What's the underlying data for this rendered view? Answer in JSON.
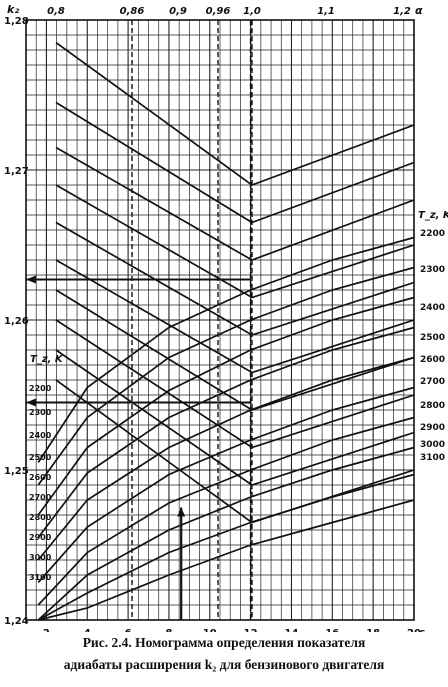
{
  "figure": {
    "caption_line1": "Рис. 2.4. Номограмма определения показателя",
    "caption_line2": "адиабаты расширения k₂ для бензинового двигателя"
  },
  "chart_data": {
    "type": "line",
    "title": "",
    "y_axis": {
      "label": "k₂",
      "range": [
        1.24,
        1.28
      ],
      "ticks": [
        "1,24",
        "1,25",
        "1,26",
        "1,27",
        "1,28"
      ],
      "tick_values": [
        1.24,
        1.25,
        1.26,
        1.27,
        1.28
      ]
    },
    "x_axis_bottom": {
      "label": "ε",
      "range": [
        1,
        20
      ],
      "ticks": [
        "2",
        "4",
        "6",
        "8",
        "10",
        "12",
        "14",
        "16",
        "18",
        "20"
      ],
      "tick_values": [
        2,
        4,
        6,
        8,
        10,
        12,
        14,
        16,
        18,
        20
      ]
    },
    "x_axis_top": {
      "label": "α",
      "ticks": [
        "0,8",
        "0,86",
        "0,9",
        "0,96",
        "1,0",
        "1,1",
        "1,2"
      ],
      "tick_values": [
        0.8,
        0.86,
        0.9,
        0.96,
        1.0,
        1.1,
        1.2
      ]
    },
    "upper_family": {
      "note": "k₂ versus α (top scale) for constant T_z",
      "legend_title": "T_z, K",
      "legend": [
        "2200",
        "2300",
        "2400",
        "2500",
        "2600",
        "2700",
        "2800",
        "2900",
        "3000",
        "3100"
      ],
      "series": [
        {
          "name": "2200",
          "alpha": [
            0.8,
            1.0,
            1.2
          ],
          "k2": [
            1.2785,
            1.269,
            1.273
          ]
        },
        {
          "name": "2300",
          "alpha": [
            0.8,
            1.0,
            1.2
          ],
          "k2": [
            1.2745,
            1.2665,
            1.2705
          ]
        },
        {
          "name": "2400",
          "alpha": [
            0.8,
            1.0,
            1.2
          ],
          "k2": [
            1.2715,
            1.264,
            1.268
          ]
        },
        {
          "name": "2500",
          "alpha": [
            0.8,
            1.0,
            1.2
          ],
          "k2": [
            1.269,
            1.2615,
            1.265
          ]
        },
        {
          "name": "2600",
          "alpha": [
            0.8,
            1.0,
            1.2
          ],
          "k2": [
            1.2665,
            1.259,
            1.2625
          ]
        },
        {
          "name": "2700",
          "alpha": [
            0.8,
            1.0,
            1.2
          ],
          "k2": [
            1.264,
            1.2565,
            1.26
          ]
        },
        {
          "name": "2800",
          "alpha": [
            0.8,
            1.0,
            1.2
          ],
          "k2": [
            1.262,
            1.254,
            1.2575
          ]
        },
        {
          "name": "2900",
          "alpha": [
            0.8,
            1.0,
            1.2
          ],
          "k2": [
            1.26,
            1.2515,
            1.255
          ]
        },
        {
          "name": "3000",
          "alpha": [
            0.8,
            1.0,
            1.2
          ],
          "k2": [
            1.258,
            1.249,
            1.2525
          ]
        },
        {
          "name": "3100",
          "alpha": [
            0.8,
            1.0,
            1.2
          ],
          "k2": [
            1.256,
            1.2465,
            1.25
          ]
        }
      ]
    },
    "lower_family": {
      "note": "k₂ versus ε (bottom scale) for constant T_z",
      "legend_title": "T_z, K",
      "legend": [
        "2200",
        "2300",
        "2400",
        "2500",
        "2600",
        "2700",
        "2800",
        "2900",
        "3000",
        "3100"
      ],
      "series": [
        {
          "name": "2200",
          "epsilon": [
            1.6,
            4,
            8,
            12,
            16,
            20
          ],
          "k2": [
            1.2505,
            1.2555,
            1.2595,
            1.262,
            1.264,
            1.2655
          ]
        },
        {
          "name": "2300",
          "epsilon": [
            1.6,
            4,
            8,
            12,
            16,
            20
          ],
          "k2": [
            1.249,
            1.2535,
            1.2575,
            1.26,
            1.262,
            1.2635
          ]
        },
        {
          "name": "2400",
          "epsilon": [
            1.6,
            4,
            8,
            12,
            16,
            20
          ],
          "k2": [
            1.247,
            1.2515,
            1.2553,
            1.258,
            1.26,
            1.2615
          ]
        },
        {
          "name": "2500",
          "epsilon": [
            1.6,
            4,
            8,
            12,
            16,
            20
          ],
          "k2": [
            1.2455,
            1.2498,
            1.2535,
            1.256,
            1.258,
            1.2595
          ]
        },
        {
          "name": "2600",
          "epsilon": [
            1.6,
            4,
            8,
            12,
            16,
            20
          ],
          "k2": [
            1.244,
            1.248,
            1.2515,
            1.254,
            1.256,
            1.2575
          ]
        },
        {
          "name": "2700",
          "epsilon": [
            1.6,
            4,
            8,
            12,
            16,
            20
          ],
          "k2": [
            1.2425,
            1.2462,
            1.2497,
            1.252,
            1.254,
            1.2555
          ]
        },
        {
          "name": "2800",
          "epsilon": [
            1.6,
            4,
            8,
            12,
            16,
            20
          ],
          "k2": [
            1.241,
            1.2445,
            1.2478,
            1.25,
            1.252,
            1.2535
          ]
        },
        {
          "name": "2900",
          "epsilon": [
            1.6,
            4,
            8,
            12,
            16,
            20
          ],
          "k2": [
            1.24,
            1.243,
            1.246,
            1.2482,
            1.25,
            1.2515
          ]
        },
        {
          "name": "3000",
          "epsilon": [
            1.6,
            4,
            8,
            12,
            16,
            20
          ],
          "k2": [
            1.24,
            1.2418,
            1.2445,
            1.2465,
            1.2482,
            1.2497
          ]
        },
        {
          "name": "3100",
          "epsilon": [
            1.6,
            4,
            8,
            12,
            16,
            20
          ],
          "k2": [
            1.24,
            1.2408,
            1.243,
            1.245,
            1.2465,
            1.248
          ]
        }
      ]
    },
    "reference_lines": {
      "top_alpha_dashed": [
        0.86,
        0.96,
        1.0
      ],
      "bottom_epsilon_dashed": [
        12
      ]
    },
    "example_arrow": {
      "from_epsilon": 8.6,
      "to_k2": 1.2545
    },
    "grid": true
  }
}
